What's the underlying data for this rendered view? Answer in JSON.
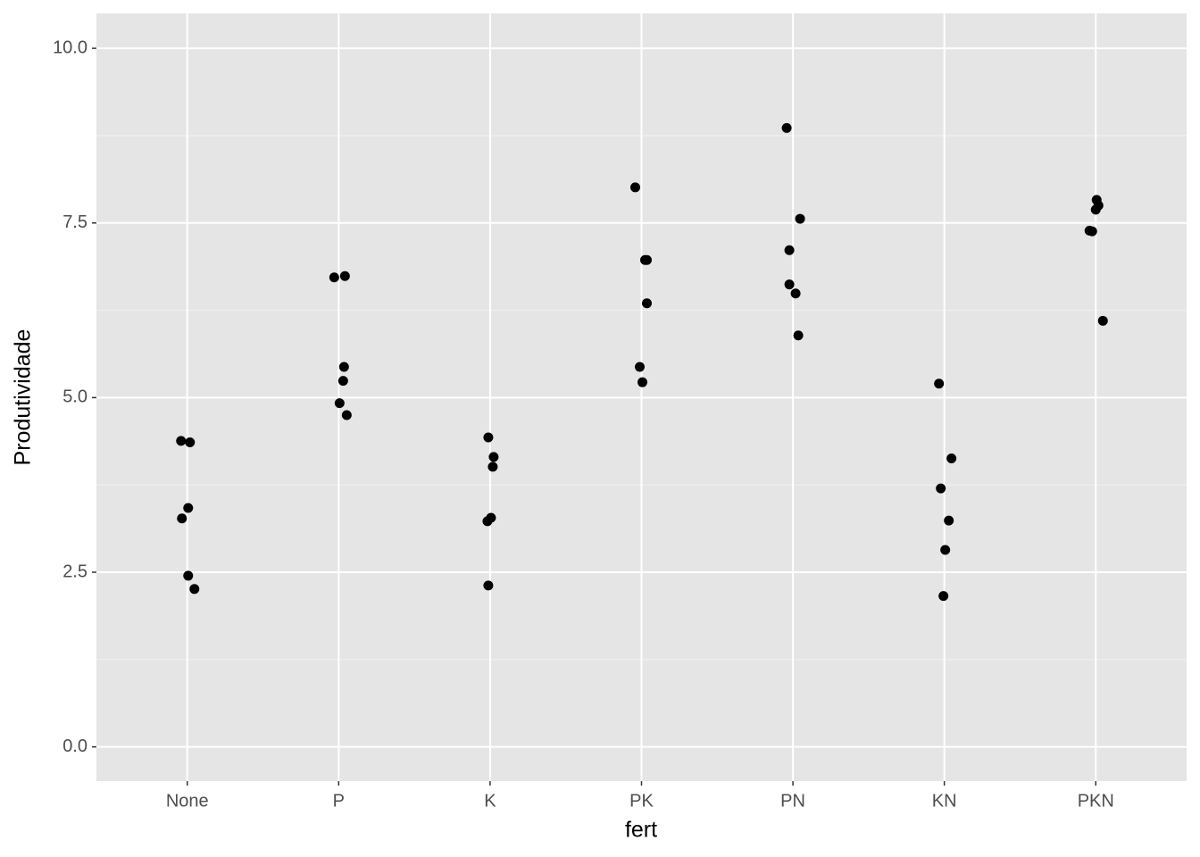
{
  "chart_data": {
    "type": "strip",
    "x_label": "fert",
    "y_label": "Produtividade",
    "categories": [
      "None",
      "P",
      "K",
      "PK",
      "PN",
      "KN",
      "PKN"
    ],
    "values": [
      [
        4.38,
        4.36,
        3.42,
        3.27,
        2.45,
        2.26
      ],
      [
        6.72,
        6.74,
        5.44,
        5.24,
        4.92,
        4.75
      ],
      [
        4.43,
        4.15,
        4.01,
        3.28,
        3.23,
        2.31
      ],
      [
        8.01,
        6.97,
        6.97,
        6.35,
        5.44,
        5.22
      ],
      [
        8.86,
        7.56,
        7.11,
        6.62,
        6.49,
        5.89
      ],
      [
        5.2,
        4.13,
        3.7,
        3.24,
        2.82,
        2.16
      ],
      [
        7.83,
        7.75,
        7.69,
        7.39,
        7.38,
        6.1
      ]
    ],
    "color": "#000000",
    "ylim": [
      -0.49,
      10.5
    ],
    "yticks": [
      {
        "value": 0,
        "label": "0.0"
      },
      {
        "value": 2.5,
        "label": "2.5"
      },
      {
        "value": 5,
        "label": "5.0"
      },
      {
        "value": 7.5,
        "label": "7.5"
      },
      {
        "value": 10,
        "label": "10.0"
      }
    ],
    "grid": true
  }
}
